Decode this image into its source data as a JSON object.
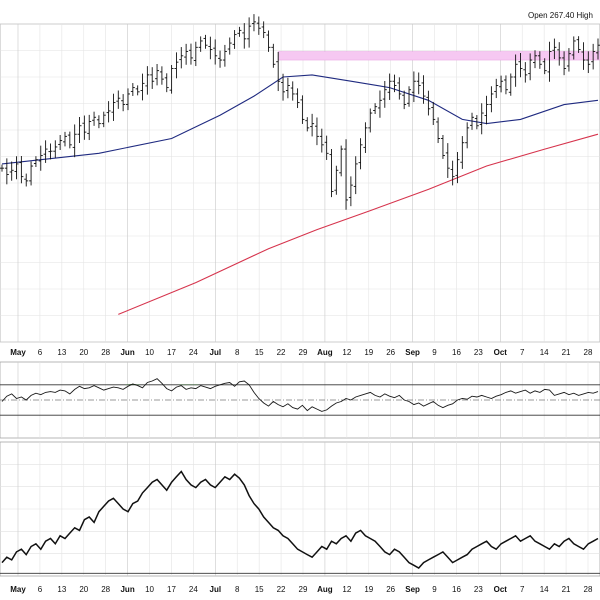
{
  "header": {
    "info_text": "Open 267.40  High"
  },
  "chart_data": [
    {
      "type": "ohlc",
      "panel": "price",
      "unit": "approx-price",
      "y_range": [
        150,
        300
      ],
      "date_ticks": [
        {
          "label": "May",
          "month": true
        },
        {
          "label": "6"
        },
        {
          "label": "13"
        },
        {
          "label": "20"
        },
        {
          "label": "28"
        },
        {
          "label": "Jun",
          "month": true
        },
        {
          "label": "10"
        },
        {
          "label": "17"
        },
        {
          "label": "24"
        },
        {
          "label": "Jul",
          "month": true
        },
        {
          "label": "8"
        },
        {
          "label": "15"
        },
        {
          "label": "22"
        },
        {
          "label": "29"
        },
        {
          "label": "Aug",
          "month": true
        },
        {
          "label": "12"
        },
        {
          "label": "19"
        },
        {
          "label": "26"
        },
        {
          "label": "Sep",
          "month": true
        },
        {
          "label": "9"
        },
        {
          "label": "16"
        },
        {
          "label": "23"
        },
        {
          "label": "Oct",
          "month": true
        },
        {
          "label": "7"
        },
        {
          "label": "14"
        },
        {
          "label": "21"
        },
        {
          "label": "28"
        }
      ],
      "closes": [
        232,
        229,
        231,
        234,
        228,
        226,
        233,
        236,
        238,
        241,
        240,
        242,
        245,
        247,
        243,
        248,
        252,
        249,
        254,
        256,
        253,
        257,
        259,
        263,
        265,
        262,
        267,
        270,
        268,
        272,
        276,
        273,
        278,
        274,
        270,
        279,
        282,
        285,
        287,
        284,
        289,
        292,
        290,
        288,
        285,
        283,
        287,
        291,
        295,
        297,
        293,
        299,
        301,
        298,
        296,
        289,
        281,
        273,
        268,
        271,
        267,
        263,
        255,
        251,
        253,
        247,
        243,
        239,
        221,
        231,
        241,
        217,
        224,
        234,
        243,
        251,
        258,
        261,
        264,
        269,
        273,
        271,
        267,
        262,
        269,
        273,
        271,
        266,
        260,
        255,
        246,
        238,
        232,
        228,
        236,
        244,
        251,
        256,
        252,
        258,
        262,
        267,
        271,
        273,
        269,
        275,
        281,
        279,
        276,
        283,
        285,
        281,
        278,
        287,
        289,
        284,
        279,
        286,
        292,
        288,
        283,
        281,
        287,
        290
      ],
      "resistance_band": {
        "low": 283,
        "high": 287,
        "from_bar": 57
      },
      "moving_averages": [
        {
          "period": 50,
          "color": "#1f2a80",
          "points": [
            [
              0,
              234
            ],
            [
              20,
              239
            ],
            [
              35,
              246
            ],
            [
              45,
              257
            ],
            [
              52,
              266
            ],
            [
              58,
              275
            ],
            [
              64,
              276
            ],
            [
              72,
              273
            ],
            [
              80,
              270
            ],
            [
              88,
              264
            ],
            [
              95,
              255
            ],
            [
              100,
              253
            ],
            [
              107,
              255
            ],
            [
              116,
              262
            ],
            [
              123,
              264
            ]
          ]
        },
        {
          "period": 200,
          "color": "#d6344d",
          "points": [
            [
              24,
              163
            ],
            [
              40,
              178
            ],
            [
              55,
              194
            ],
            [
              65,
              203
            ],
            [
              76,
              212
            ],
            [
              88,
              222
            ],
            [
              100,
              233
            ],
            [
              112,
              241
            ],
            [
              123,
              248
            ]
          ]
        }
      ]
    },
    {
      "type": "line",
      "panel": "indicator-1",
      "y_range": [
        0,
        100
      ],
      "upper_level": 70,
      "mid_level": 50,
      "lower_level": 30,
      "fill_above_color": "#4a7a45",
      "values": [
        48,
        55,
        58,
        52,
        54,
        50,
        56,
        59,
        57,
        60,
        61,
        60,
        63,
        62,
        58,
        64,
        68,
        65,
        66,
        69,
        66,
        63,
        65,
        67,
        66,
        64,
        68,
        71,
        69,
        66,
        73,
        75,
        78,
        72,
        65,
        62,
        67,
        69,
        64,
        66,
        65,
        69,
        67,
        65,
        68,
        70,
        72,
        73,
        68,
        74,
        75,
        70,
        60,
        52,
        46,
        42,
        48,
        44,
        41,
        45,
        40,
        38,
        43,
        36,
        41,
        38,
        35,
        37,
        42,
        46,
        48,
        52,
        50,
        54,
        56,
        58,
        60,
        56,
        54,
        58,
        55,
        53,
        56,
        50,
        48,
        44,
        46,
        42,
        45,
        48,
        43,
        40,
        43,
        45,
        50,
        52,
        51,
        55,
        54,
        56,
        54,
        52,
        55,
        57,
        60,
        62,
        59,
        61,
        63,
        59,
        62,
        60,
        64,
        63,
        56,
        58,
        60,
        57,
        59,
        56,
        58,
        60,
        59,
        61
      ],
      "shaded_segments": [
        [
          26,
          28
        ],
        [
          37,
          40
        ]
      ]
    },
    {
      "type": "line",
      "panel": "indicator-2",
      "y_range": [
        0,
        100
      ],
      "baseline": 2,
      "values": [
        10,
        14,
        12,
        18,
        20,
        16,
        22,
        24,
        20,
        26,
        28,
        24,
        30,
        28,
        32,
        36,
        34,
        42,
        44,
        40,
        48,
        52,
        56,
        58,
        54,
        50,
        48,
        54,
        56,
        62,
        66,
        70,
        72,
        68,
        64,
        70,
        74,
        78,
        72,
        68,
        66,
        70,
        72,
        68,
        66,
        70,
        74,
        72,
        76,
        73,
        68,
        60,
        54,
        50,
        44,
        40,
        36,
        34,
        30,
        28,
        24,
        20,
        18,
        16,
        14,
        18,
        22,
        20,
        26,
        24,
        28,
        30,
        26,
        32,
        34,
        30,
        28,
        26,
        22,
        18,
        16,
        20,
        18,
        14,
        10,
        8,
        6,
        10,
        12,
        14,
        16,
        18,
        14,
        10,
        12,
        14,
        16,
        20,
        22,
        24,
        26,
        22,
        20,
        24,
        26,
        28,
        30,
        26,
        28,
        30,
        26,
        24,
        22,
        20,
        24,
        22,
        26,
        28,
        24,
        22,
        20,
        24,
        26,
        28
      ]
    }
  ]
}
